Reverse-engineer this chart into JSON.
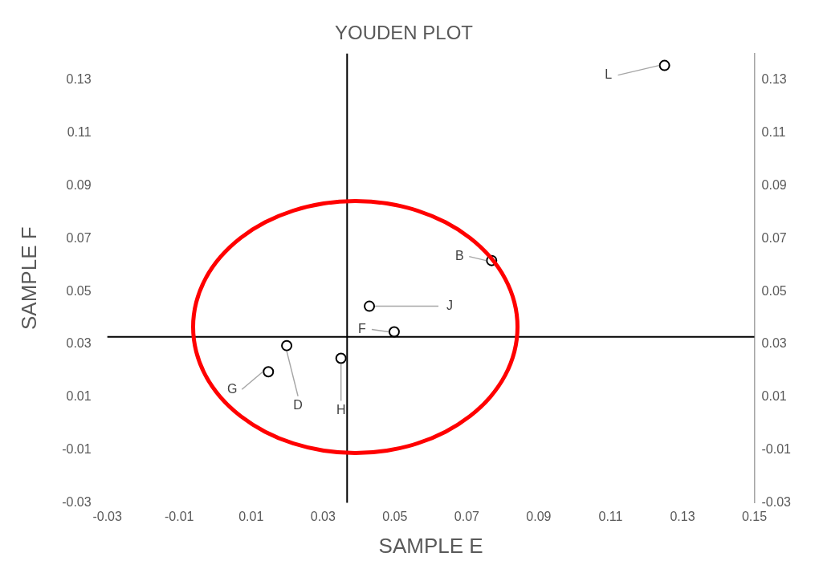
{
  "chart_data": {
    "type": "scatter",
    "title": "YOUDEN PLOT",
    "xlabel": "SAMPLE E",
    "ylabel": "SAMPLE F",
    "xlim": [
      -0.03,
      0.15
    ],
    "xticks": [
      -0.03,
      -0.01,
      0.01,
      0.03,
      0.05,
      0.07,
      0.09,
      0.11,
      0.13,
      0.15
    ],
    "ylim": [
      -0.03,
      0.14
    ],
    "yticks": [
      -0.03,
      -0.01,
      0.01,
      0.03,
      0.05,
      0.07,
      0.09,
      0.11,
      0.13
    ],
    "y2lim": [
      -0.03,
      0.14
    ],
    "y2ticks": [
      -0.03,
      -0.01,
      0.01,
      0.03,
      0.05,
      0.07,
      0.09,
      0.11,
      0.13
    ],
    "grid": false,
    "legend": false,
    "marker": "circle",
    "series": [
      {
        "type": "scatter",
        "color": "#000000",
        "x": [
          0.125,
          0.0769,
          0.0429,
          0.0498,
          0.0199,
          0.035,
          0.0148
        ],
        "values": [
          0.1355,
          0.0617,
          0.0444,
          0.0347,
          0.0295,
          0.0247,
          0.0196
        ]
      }
    ],
    "ref_lines": [
      {
        "axis": "x",
        "value": 0.0367,
        "color": "#000000"
      },
      {
        "axis": "y",
        "value": 0.0328,
        "color": "#000000"
      }
    ],
    "annotations": [
      {
        "text": "L",
        "x": 0.125,
        "y": 0.1355
      },
      {
        "text": "B",
        "x": 0.0769,
        "y": 0.0617
      },
      {
        "text": "J",
        "x": 0.0429,
        "y": 0.0444
      },
      {
        "text": "F",
        "x": 0.0498,
        "y": 0.0347
      },
      {
        "text": "D",
        "x": 0.0199,
        "y": 0.0295
      },
      {
        "text": "H",
        "x": 0.035,
        "y": 0.0247
      },
      {
        "text": "G",
        "x": 0.0148,
        "y": 0.0196
      }
    ]
  }
}
